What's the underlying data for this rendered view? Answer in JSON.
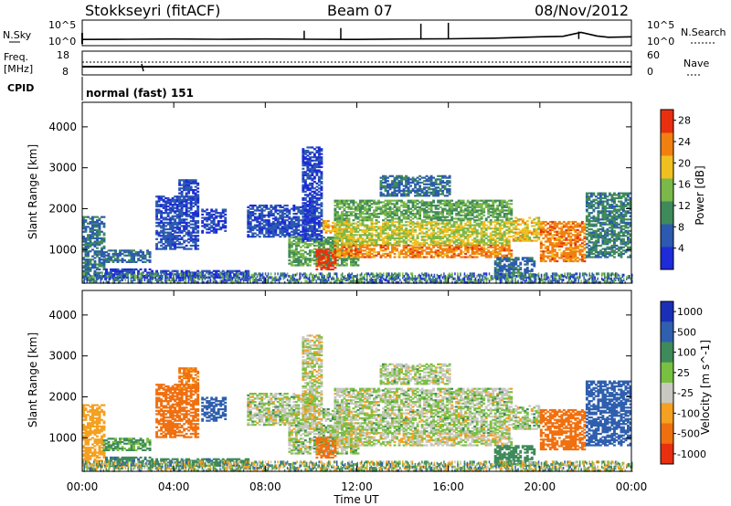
{
  "header": {
    "station": "Stokkseyri (fitACF)",
    "beam": "Beam 07",
    "date": "08/Nov/2012"
  },
  "panels": {
    "nsky_label": "N.Sky",
    "nsearch_label": "N.Search",
    "nsky_ticks": [
      "10^5",
      "10^0"
    ],
    "nsearch_ticks": [
      "10^5",
      "10^0"
    ],
    "freq_label_1": "Freq.",
    "freq_label_2": "[MHz]",
    "freq_ticks": [
      "18",
      "8"
    ],
    "nave_label": "Nave",
    "nave_ticks": [
      "60",
      "0"
    ],
    "cpid_label": "CPID",
    "cpid_value": "normal (fast) 151"
  },
  "chart_data": {
    "type": "heatmap",
    "x": {
      "label": "Time UT",
      "range_hours": [
        0,
        24
      ],
      "tick_hours": [
        0,
        4,
        8,
        12,
        16,
        20,
        24
      ],
      "tick_labels": [
        "00:00",
        "04:00",
        "08:00",
        "12:00",
        "16:00",
        "20:00",
        "00:00"
      ]
    },
    "y": {
      "label": "Slant Range [km]",
      "range": [
        180,
        4600
      ],
      "ticks": [
        1000,
        2000,
        3000,
        4000
      ]
    },
    "power": {
      "colorbar_label": "Power [dB]",
      "range": [
        0,
        30
      ],
      "ticks": [
        4,
        8,
        12,
        16,
        20,
        24,
        28
      ],
      "colors": [
        "#1d2bd8",
        "#2b5ab0",
        "#3f8a5a",
        "#7ab84a",
        "#f0c020",
        "#f08010",
        "#e83010"
      ]
    },
    "velocity": {
      "colorbar_label": "Velocity [m s^-1]",
      "ticks": [
        1000,
        500,
        100,
        25,
        -25,
        -100,
        -500,
        -1000
      ],
      "colors": [
        "#1a2fb8",
        "#2f5fae",
        "#3f8a5a",
        "#78c040",
        "#c8c8c0",
        "#f4a020",
        "#f07010",
        "#e83010"
      ]
    },
    "regions": [
      {
        "t": [
          0.0,
          0.9
        ],
        "r": [
          300,
          1800
        ],
        "pw": 10,
        "v": -60
      },
      {
        "t": [
          0.9,
          3.0
        ],
        "r": [
          680,
          1000
        ],
        "pw": 9,
        "v": 30
      },
      {
        "t": [
          1.0,
          3.0
        ],
        "r": [
          300,
          520
        ],
        "pw": 5,
        "v": 80
      },
      {
        "t": [
          3.0,
          7.2
        ],
        "r": [
          300,
          500
        ],
        "pw": 5,
        "v": 80
      },
      {
        "t": [
          3.2,
          5.0
        ],
        "r": [
          1000,
          2300
        ],
        "pw": 7,
        "v": -150
      },
      {
        "t": [
          4.2,
          5.0
        ],
        "r": [
          2200,
          2700
        ],
        "pw": 7,
        "v": -120
      },
      {
        "t": [
          5.2,
          6.2
        ],
        "r": [
          1400,
          2000
        ],
        "pw": 6,
        "v": 150
      },
      {
        "t": [
          7.2,
          10.0
        ],
        "r": [
          1300,
          2100
        ],
        "pw": 7,
        "v": 0
      },
      {
        "t": [
          9.0,
          12.0
        ],
        "r": [
          600,
          1300
        ],
        "pw": 14,
        "v": 0
      },
      {
        "t": [
          9.6,
          10.4
        ],
        "r": [
          1200,
          3500
        ],
        "pw": 6,
        "v": -10
      },
      {
        "t": [
          10.2,
          11.0
        ],
        "r": [
          500,
          1000
        ],
        "pw": 28,
        "v": -150
      },
      {
        "t": [
          10.5,
          11.5
        ],
        "r": [
          1400,
          1700
        ],
        "pw": 22,
        "v": 10
      },
      {
        "t": [
          11.0,
          18.8
        ],
        "r": [
          1700,
          2200
        ],
        "pw": 14,
        "v": 0
      },
      {
        "t": [
          11.0,
          18.8
        ],
        "r": [
          1100,
          1700
        ],
        "pw": 18,
        "v": 0
      },
      {
        "t": [
          11.0,
          18.8
        ],
        "r": [
          800,
          1100
        ],
        "pw": 24,
        "v": -10
      },
      {
        "t": [
          13.0,
          16.0
        ],
        "r": [
          2300,
          2800
        ],
        "pw": 9,
        "v": 0
      },
      {
        "t": [
          18.8,
          20.0
        ],
        "r": [
          1200,
          1800
        ],
        "pw": 20,
        "v": 0
      },
      {
        "t": [
          18.0,
          19.8
        ],
        "r": [
          300,
          800
        ],
        "pw": 9,
        "v": 60
      },
      {
        "t": [
          20.0,
          22.0
        ],
        "r": [
          700,
          1700
        ],
        "pw": 24,
        "v": -300
      },
      {
        "t": [
          22.0,
          24.0
        ],
        "r": [
          800,
          2400
        ],
        "pw": 11,
        "v": 150
      }
    ],
    "noise_region": {
      "t": [
        0,
        24
      ],
      "r": [
        200,
        420
      ]
    }
  },
  "nsky_series": [
    [
      0,
      1.0
    ],
    [
      2,
      1.05
    ],
    [
      4,
      1.1
    ],
    [
      6,
      1.05
    ],
    [
      8,
      1.1
    ],
    [
      10,
      1.05
    ],
    [
      12,
      1.0
    ],
    [
      14,
      1.1
    ],
    [
      16,
      1.15
    ],
    [
      18,
      1.3
    ],
    [
      20,
      1.6
    ],
    [
      21,
      1.7
    ],
    [
      21.8,
      2.6
    ],
    [
      22.5,
      1.8
    ],
    [
      23,
      1.5
    ],
    [
      24,
      1.6
    ]
  ],
  "nsky_spikes": [
    [
      9.7,
      3.0
    ],
    [
      11.3,
      3.6
    ],
    [
      14.8,
      4.6
    ],
    [
      16.0,
      4.8
    ],
    [
      21.7,
      2.8
    ]
  ]
}
